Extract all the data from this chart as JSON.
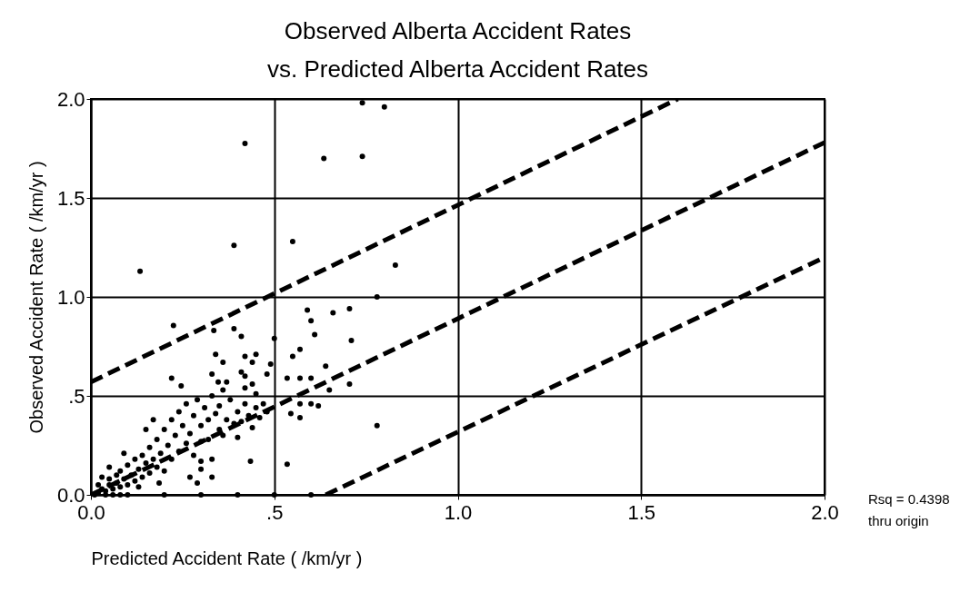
{
  "chart_data": {
    "type": "scatter",
    "title": [
      "Observed Alberta Accident Rates",
      "vs. Predicted Alberta Accident Rates"
    ],
    "xlabel": "Predicted Accident Rate ( /km/yr )",
    "ylabel": "Observed Accident Rate ( /km/yr )",
    "annotations": [
      "Rsq = 0.4398",
      "thru origin"
    ],
    "xlim": [
      0,
      2
    ],
    "ylim": [
      0,
      2
    ],
    "xticks": [
      {
        "value": 0,
        "label": "0.0"
      },
      {
        "value": 0.5,
        "label": ".5"
      },
      {
        "value": 1,
        "label": "1.0"
      },
      {
        "value": 1.5,
        "label": "1.5"
      },
      {
        "value": 2,
        "label": "2.0"
      }
    ],
    "yticks": [
      {
        "value": 0,
        "label": "0.0"
      },
      {
        "value": 0.5,
        "label": ".5"
      },
      {
        "value": 1,
        "label": "1.0"
      },
      {
        "value": 1.5,
        "label": "1.5"
      },
      {
        "value": 2,
        "label": "2.0"
      }
    ],
    "grid": true,
    "series": [
      {
        "color": "#000000",
        "marker": "circle",
        "x": [
          0.42,
          0.74,
          0.8,
          0.635,
          0.74,
          0.39,
          0.134,
          0.55,
          0.83,
          0.705,
          0.71,
          0.705,
          0.78,
          0.78,
          0.59,
          0.66,
          0.6,
          0.61,
          0.57,
          0.55,
          0.5,
          0.49,
          0.48,
          0.535,
          0.57,
          0.6,
          0.64,
          0.65,
          0.57,
          0.6,
          0.62,
          0.545,
          0.57,
          0.535,
          0.435,
          0.41,
          0.39,
          0.335,
          0.225,
          0.34,
          0.36,
          0.42,
          0.44,
          0.45,
          0.41,
          0.42,
          0.44,
          0.22,
          0.246,
          0.33,
          0.347,
          0.37,
          0.36,
          0.42,
          0.45,
          0.3,
          0.33,
          0.3,
          0.33,
          0.27,
          0.186,
          0.29,
          0.01,
          0.02,
          0.03,
          0.04,
          0.05,
          0.05,
          0.06,
          0.07,
          0.07,
          0.08,
          0.08,
          0.09,
          0.1,
          0.1,
          0.11,
          0.12,
          0.12,
          0.13,
          0.14,
          0.14,
          0.15,
          0.16,
          0.16,
          0.17,
          0.18,
          0.18,
          0.19,
          0.2,
          0.2,
          0.21,
          0.22,
          0.22,
          0.23,
          0.24,
          0.24,
          0.25,
          0.26,
          0.26,
          0.27,
          0.28,
          0.28,
          0.29,
          0.3,
          0.3,
          0.31,
          0.32,
          0.32,
          0.33,
          0.34,
          0.35,
          0.35,
          0.36,
          0.37,
          0.38,
          0.39,
          0.4,
          0.4,
          0.41,
          0.42,
          0.43,
          0.44,
          0.45,
          0.46,
          0.47,
          0.48,
          0.15,
          0.17,
          0.09,
          0.05,
          0.03,
          0.02,
          0.06,
          0.1,
          0.2,
          0.3,
          0.4,
          0.5,
          0.6,
          0.13,
          0.08,
          0.04
        ],
        "values": [
          1.775,
          1.98,
          1.96,
          1.7,
          1.71,
          1.26,
          1.13,
          1.28,
          1.16,
          0.94,
          0.78,
          0.56,
          0.35,
          1.0,
          0.934,
          0.92,
          0.88,
          0.81,
          0.735,
          0.7,
          0.79,
          0.66,
          0.61,
          0.59,
          0.59,
          0.59,
          0.65,
          0.53,
          0.46,
          0.46,
          0.45,
          0.41,
          0.39,
          0.155,
          0.17,
          0.8,
          0.84,
          0.83,
          0.855,
          0.71,
          0.67,
          0.7,
          0.67,
          0.71,
          0.62,
          0.6,
          0.56,
          0.59,
          0.55,
          0.61,
          0.57,
          0.57,
          0.53,
          0.54,
          0.51,
          0.17,
          0.18,
          0.13,
          0.09,
          0.09,
          0.06,
          0.06,
          0.0,
          0.01,
          0.03,
          0.02,
          0.05,
          0.08,
          0.03,
          0.1,
          0.06,
          0.04,
          0.12,
          0.08,
          0.15,
          0.05,
          0.1,
          0.18,
          0.07,
          0.13,
          0.2,
          0.09,
          0.16,
          0.11,
          0.24,
          0.18,
          0.14,
          0.28,
          0.21,
          0.12,
          0.33,
          0.25,
          0.18,
          0.38,
          0.3,
          0.22,
          0.42,
          0.35,
          0.26,
          0.46,
          0.31,
          0.2,
          0.4,
          0.48,
          0.35,
          0.27,
          0.44,
          0.38,
          0.28,
          0.5,
          0.41,
          0.33,
          0.45,
          0.3,
          0.38,
          0.48,
          0.36,
          0.29,
          0.42,
          0.37,
          0.46,
          0.4,
          0.34,
          0.44,
          0.39,
          0.46,
          0.42,
          0.33,
          0.38,
          0.21,
          0.14,
          0.09,
          0.05,
          0.0,
          0.0,
          0.0,
          0.0,
          0.0,
          0.0,
          0.0,
          0.04,
          0.0,
          0.0
        ]
      },
      {
        "type": "line",
        "color": "#000000",
        "line_style": "dashed",
        "marker": "none",
        "x": [
          0,
          1.6
        ],
        "values": [
          0.57,
          2.0
        ]
      },
      {
        "type": "line",
        "color": "#000000",
        "line_style": "dashed",
        "marker": "none",
        "x": [
          0,
          2.0
        ],
        "values": [
          0,
          1.78
        ]
      },
      {
        "type": "line",
        "color": "#000000",
        "line_style": "dashed",
        "marker": "none",
        "x": [
          0.64,
          2.0
        ],
        "values": [
          0,
          1.2
        ]
      }
    ]
  }
}
